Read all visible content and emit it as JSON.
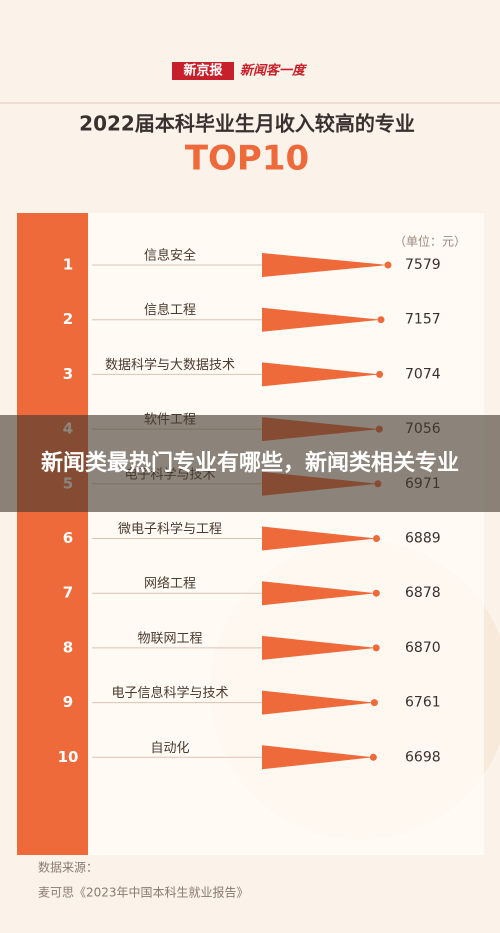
{
  "header": {
    "brand": "新京报",
    "column": "新闻客一度"
  },
  "chart_data": {
    "type": "triangle-bar",
    "title": "2022届本科毕业生月收入较高的专业",
    "subtitle": "TOP10",
    "unit": "（单位：元）",
    "ranks": [
      "1",
      "2",
      "3",
      "4",
      "5",
      "6",
      "7",
      "8",
      "9",
      "10"
    ],
    "categories": [
      "信息安全",
      "信息工程",
      "数据科学与大数据技术",
      "软件工程",
      "电子科学与技术",
      "微电子科学与工程",
      "网络工程",
      "物联网工程",
      "电子信息科学与技术",
      "自动化"
    ],
    "values": [
      7579,
      7157,
      7074,
      7056,
      6971,
      6889,
      6878,
      6870,
      6761,
      6698
    ],
    "color": "#ee6a3a"
  },
  "source": {
    "label": "数据来源：",
    "text": "麦可思《2023年中国本科生就业报告》"
  },
  "overlay_title": "新闻类最热门专业有哪些，新闻类相关专业"
}
